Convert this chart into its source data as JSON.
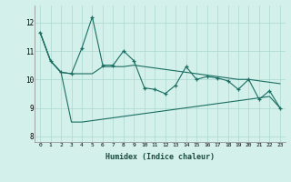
{
  "xlabel": "Humidex (Indice chaleur)",
  "bg_color": "#d4f0eb",
  "grid_color": "#a8d8d0",
  "line_color": "#1a6e62",
  "xlim": [
    -0.5,
    23.5
  ],
  "ylim": [
    7.8,
    12.6
  ],
  "yticks": [
    8,
    9,
    10,
    11,
    12
  ],
  "xticks": [
    0,
    1,
    2,
    3,
    4,
    5,
    6,
    7,
    8,
    9,
    10,
    11,
    12,
    13,
    14,
    15,
    16,
    17,
    18,
    19,
    20,
    21,
    22,
    23
  ],
  "series1_x": [
    0,
    1,
    2,
    3,
    4,
    5,
    6,
    7,
    8,
    9,
    10,
    11,
    12,
    13,
    14,
    15,
    16,
    17,
    18,
    19,
    20,
    21,
    22,
    23
  ],
  "series1_y": [
    11.65,
    10.65,
    10.25,
    10.2,
    11.1,
    12.2,
    10.5,
    10.5,
    11.0,
    10.65,
    9.7,
    9.65,
    9.5,
    9.8,
    10.45,
    10.0,
    10.1,
    10.05,
    9.95,
    9.65,
    10.0,
    9.3,
    9.6,
    9.0
  ],
  "series2_x": [
    0,
    1,
    2,
    3,
    4,
    5,
    6,
    7,
    8,
    9,
    10,
    11,
    12,
    13,
    14,
    15,
    16,
    17,
    18,
    19,
    20,
    21,
    22,
    23
  ],
  "series2_y": [
    11.65,
    10.65,
    10.25,
    10.2,
    10.2,
    10.2,
    10.45,
    10.45,
    10.45,
    10.5,
    10.45,
    10.4,
    10.35,
    10.3,
    10.25,
    10.2,
    10.15,
    10.1,
    10.05,
    10.0,
    10.0,
    9.95,
    9.9,
    9.85
  ],
  "series3_x": [
    0,
    1,
    2,
    3,
    4,
    5,
    6,
    7,
    8,
    9,
    10,
    11,
    12,
    13,
    14,
    15,
    16,
    17,
    18,
    19,
    20,
    21,
    22,
    23
  ],
  "series3_y": [
    11.65,
    10.65,
    10.25,
    8.5,
    8.5,
    8.55,
    8.6,
    8.65,
    8.7,
    8.75,
    8.8,
    8.85,
    8.9,
    8.95,
    9.0,
    9.05,
    9.1,
    9.15,
    9.2,
    9.25,
    9.3,
    9.35,
    9.4,
    9.0
  ]
}
